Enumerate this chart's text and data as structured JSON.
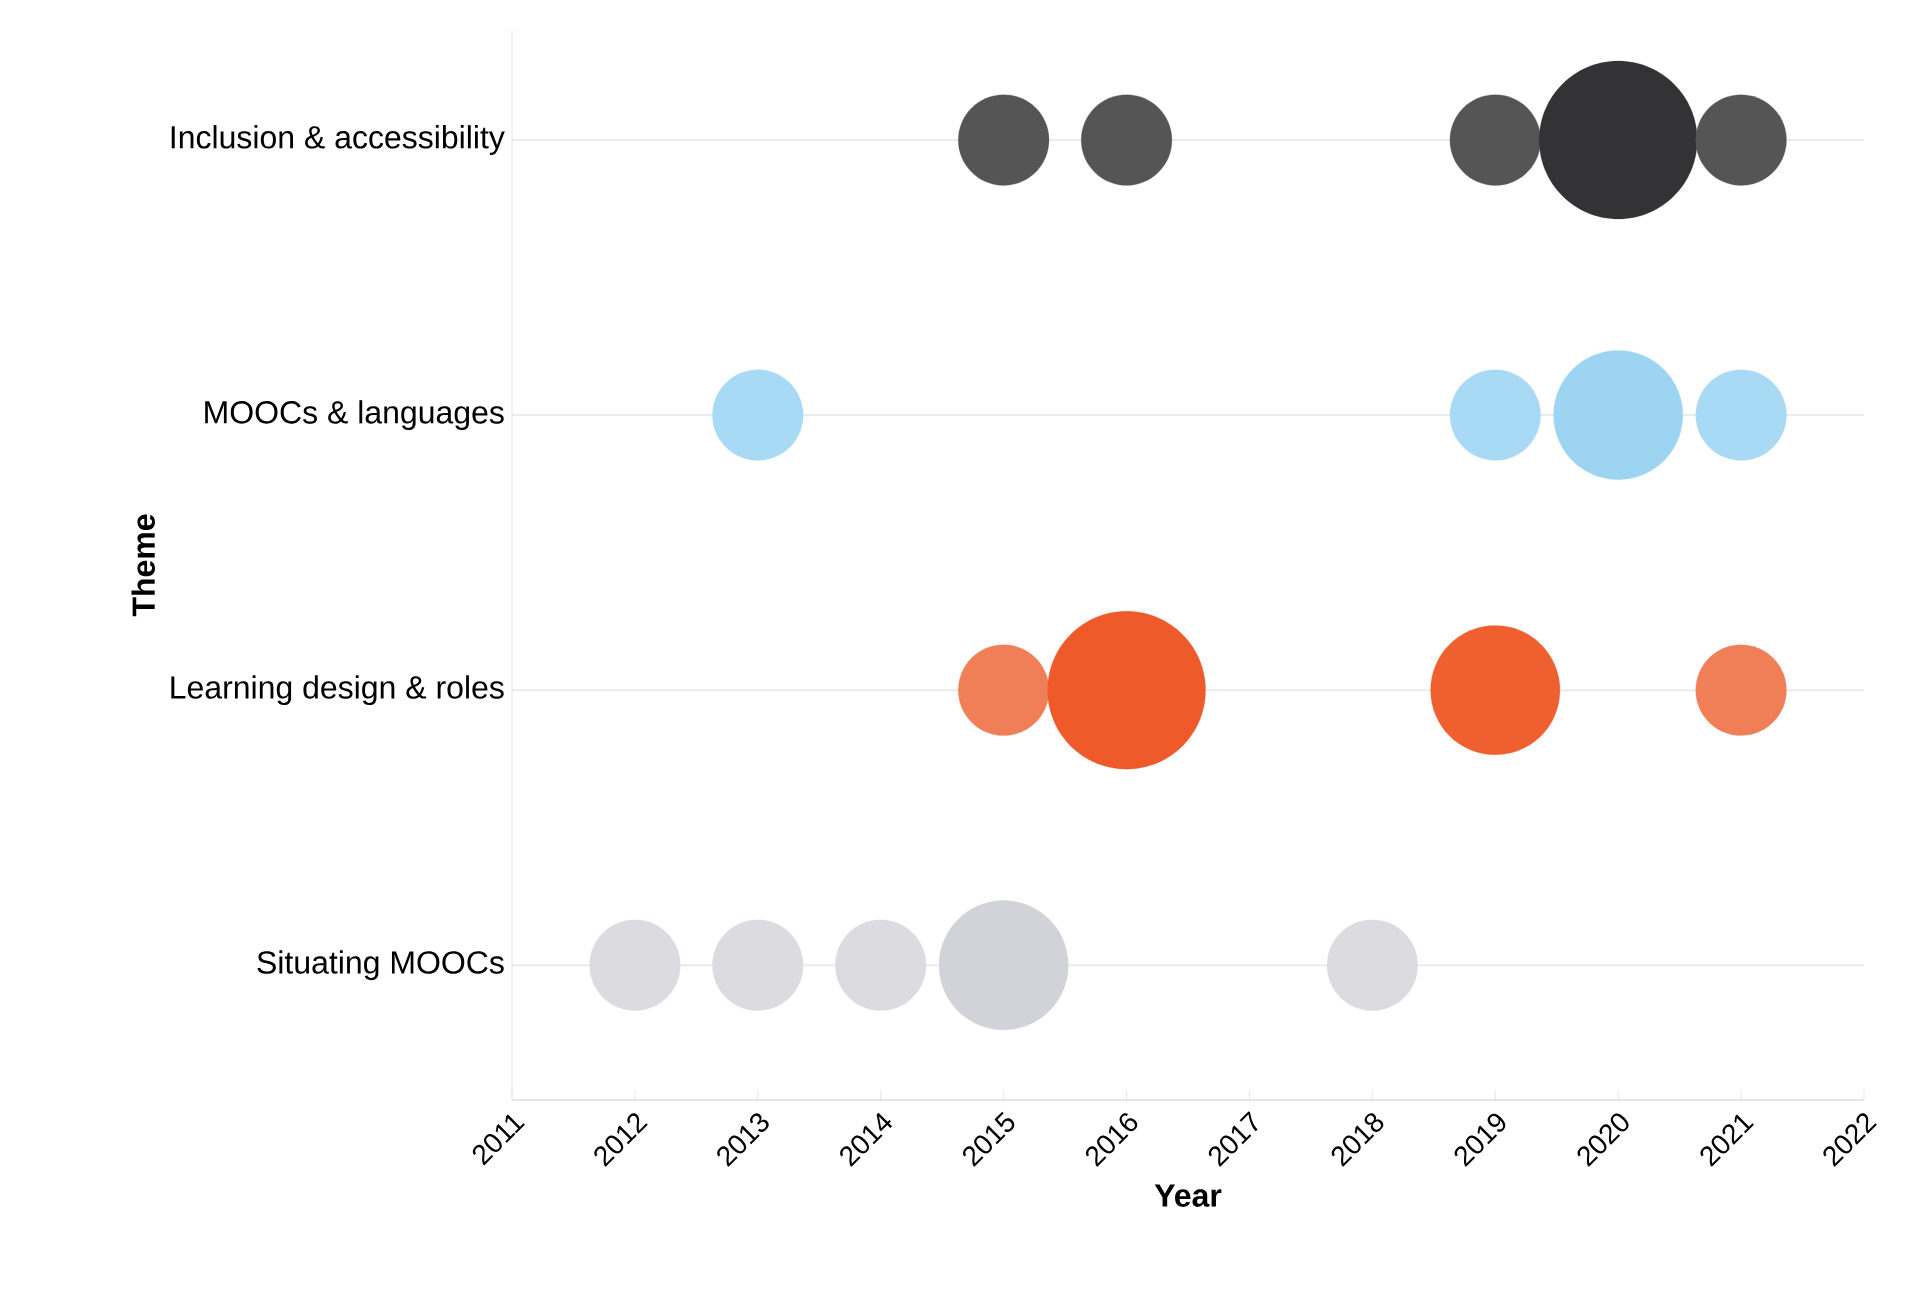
{
  "chart_data": {
    "type": "bubble",
    "orientation": "horizontal",
    "xlabel": "Year",
    "ylabel": "Theme",
    "xlim": [
      2011,
      2022
    ],
    "xticks": [
      2011,
      2012,
      2013,
      2014,
      2015,
      2016,
      2017,
      2018,
      2019,
      2020,
      2021,
      2022
    ],
    "categories": [
      "Inclusion & accessibility",
      "MOOCs & languages",
      "Learning design & roles",
      "Situating MOOCs"
    ],
    "grid": "y",
    "series": [
      {
        "values": [
          null,
          null,
          null,
          2012
        ],
        "sizes": [
          null,
          null,
          null,
          0.33
        ],
        "colors": [
          null,
          null,
          null,
          "#dcdce0"
        ]
      },
      {
        "values": [
          null,
          2013,
          null,
          2013
        ],
        "sizes": [
          null,
          0.33,
          null,
          0.33
        ],
        "colors": [
          null,
          "#a8daf5",
          null,
          "#dcdce0"
        ]
      },
      {
        "values": [
          null,
          null,
          null,
          2014
        ],
        "sizes": [
          null,
          null,
          null,
          0.33
        ],
        "colors": [
          null,
          null,
          null,
          "#dcdce0"
        ]
      },
      {
        "values": [
          2015,
          null,
          2015,
          2015
        ],
        "sizes": [
          0.33,
          null,
          0.33,
          0.67
        ],
        "colors": [
          "#555555",
          null,
          "#f07f58",
          "#d2d3d9"
        ]
      },
      {
        "values": [
          2016,
          null,
          2016,
          null
        ],
        "sizes": [
          0.33,
          null,
          1,
          null
        ],
        "colors": [
          "#555555",
          null,
          "#ee5a2a",
          null
        ]
      },
      {
        "values": [
          null,
          null,
          null,
          2018
        ],
        "sizes": [
          null,
          null,
          null,
          0.33
        ],
        "colors": [
          null,
          null,
          null,
          "#dcdce0"
        ]
      },
      {
        "values": [
          2019,
          2019,
          2019,
          null
        ],
        "sizes": [
          0.33,
          0.33,
          0.67,
          null
        ],
        "colors": [
          "#555555",
          "#a8daf5",
          "#ef5f30",
          null
        ]
      },
      {
        "values": [
          2020,
          2020,
          null,
          null
        ],
        "sizes": [
          1,
          0.67,
          null,
          null
        ],
        "colors": [
          "#333336",
          "#9dd4f2",
          null,
          null
        ]
      },
      {
        "values": [
          2021,
          2021,
          2021,
          null
        ],
        "sizes": [
          0.33,
          0.33,
          0.33,
          null
        ],
        "colors": [
          "#555555",
          "#a8daf5",
          "#f07f58",
          null
        ]
      }
    ]
  }
}
